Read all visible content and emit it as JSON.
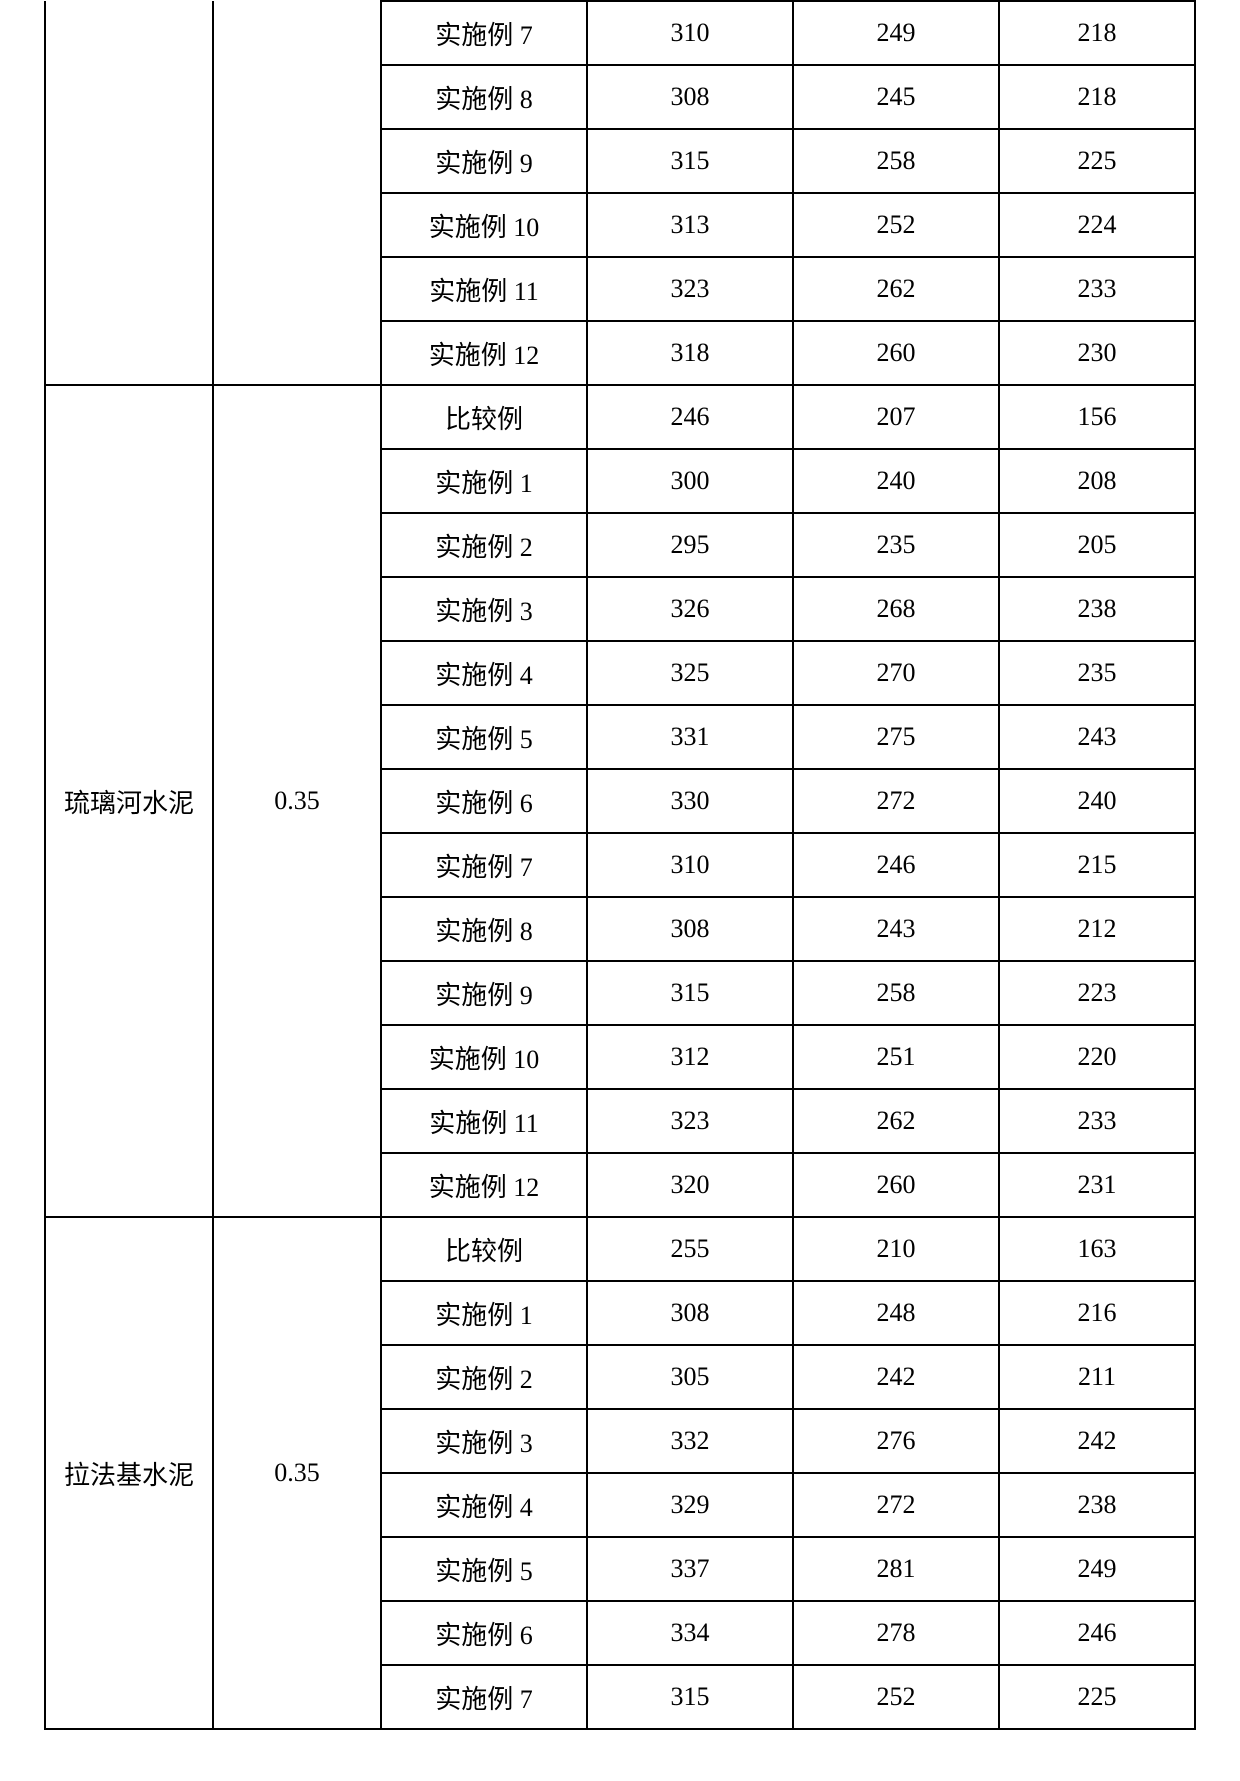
{
  "g1": {
    "rows": [
      {
        "label": "实施例 7",
        "v1": "310",
        "v2": "249",
        "v3": "218"
      },
      {
        "label": "实施例 8",
        "v1": "308",
        "v2": "245",
        "v3": "218"
      },
      {
        "label": "实施例 9",
        "v1": "315",
        "v2": "258",
        "v3": "225"
      },
      {
        "label": "实施例 10",
        "v1": "313",
        "v2": "252",
        "v3": "224"
      },
      {
        "label": "实施例 11",
        "v1": "323",
        "v2": "262",
        "v3": "233"
      },
      {
        "label": "实施例 12",
        "v1": "318",
        "v2": "260",
        "v3": "230"
      }
    ]
  },
  "g2": {
    "name": "琉璃河水泥",
    "ratio": "0.35",
    "rows": [
      {
        "label": "比较例",
        "v1": "246",
        "v2": "207",
        "v3": "156"
      },
      {
        "label": "实施例 1",
        "v1": "300",
        "v2": "240",
        "v3": "208"
      },
      {
        "label": "实施例 2",
        "v1": "295",
        "v2": "235",
        "v3": "205"
      },
      {
        "label": "实施例 3",
        "v1": "326",
        "v2": "268",
        "v3": "238"
      },
      {
        "label": "实施例 4",
        "v1": "325",
        "v2": "270",
        "v3": "235"
      },
      {
        "label": "实施例 5",
        "v1": "331",
        "v2": "275",
        "v3": "243"
      },
      {
        "label": "实施例 6",
        "v1": "330",
        "v2": "272",
        "v3": "240"
      },
      {
        "label": "实施例 7",
        "v1": "310",
        "v2": "246",
        "v3": "215"
      },
      {
        "label": "实施例 8",
        "v1": "308",
        "v2": "243",
        "v3": "212"
      },
      {
        "label": "实施例 9",
        "v1": "315",
        "v2": "258",
        "v3": "223"
      },
      {
        "label": "实施例 10",
        "v1": "312",
        "v2": "251",
        "v3": "220"
      },
      {
        "label": "实施例 11",
        "v1": "323",
        "v2": "262",
        "v3": "233"
      },
      {
        "label": "实施例 12",
        "v1": "320",
        "v2": "260",
        "v3": "231"
      }
    ]
  },
  "g3": {
    "name": "拉法基水泥",
    "ratio": "0.35",
    "rows": [
      {
        "label": "比较例",
        "v1": "255",
        "v2": "210",
        "v3": "163"
      },
      {
        "label": "实施例 1",
        "v1": "308",
        "v2": "248",
        "v3": "216"
      },
      {
        "label": "实施例 2",
        "v1": "305",
        "v2": "242",
        "v3": "211"
      },
      {
        "label": "实施例 3",
        "v1": "332",
        "v2": "276",
        "v3": "242"
      },
      {
        "label": "实施例 4",
        "v1": "329",
        "v2": "272",
        "v3": "238"
      },
      {
        "label": "实施例 5",
        "v1": "337",
        "v2": "281",
        "v3": "249"
      },
      {
        "label": "实施例 6",
        "v1": "334",
        "v2": "278",
        "v3": "246"
      },
      {
        "label": "实施例 7",
        "v1": "315",
        "v2": "252",
        "v3": "225"
      }
    ]
  }
}
